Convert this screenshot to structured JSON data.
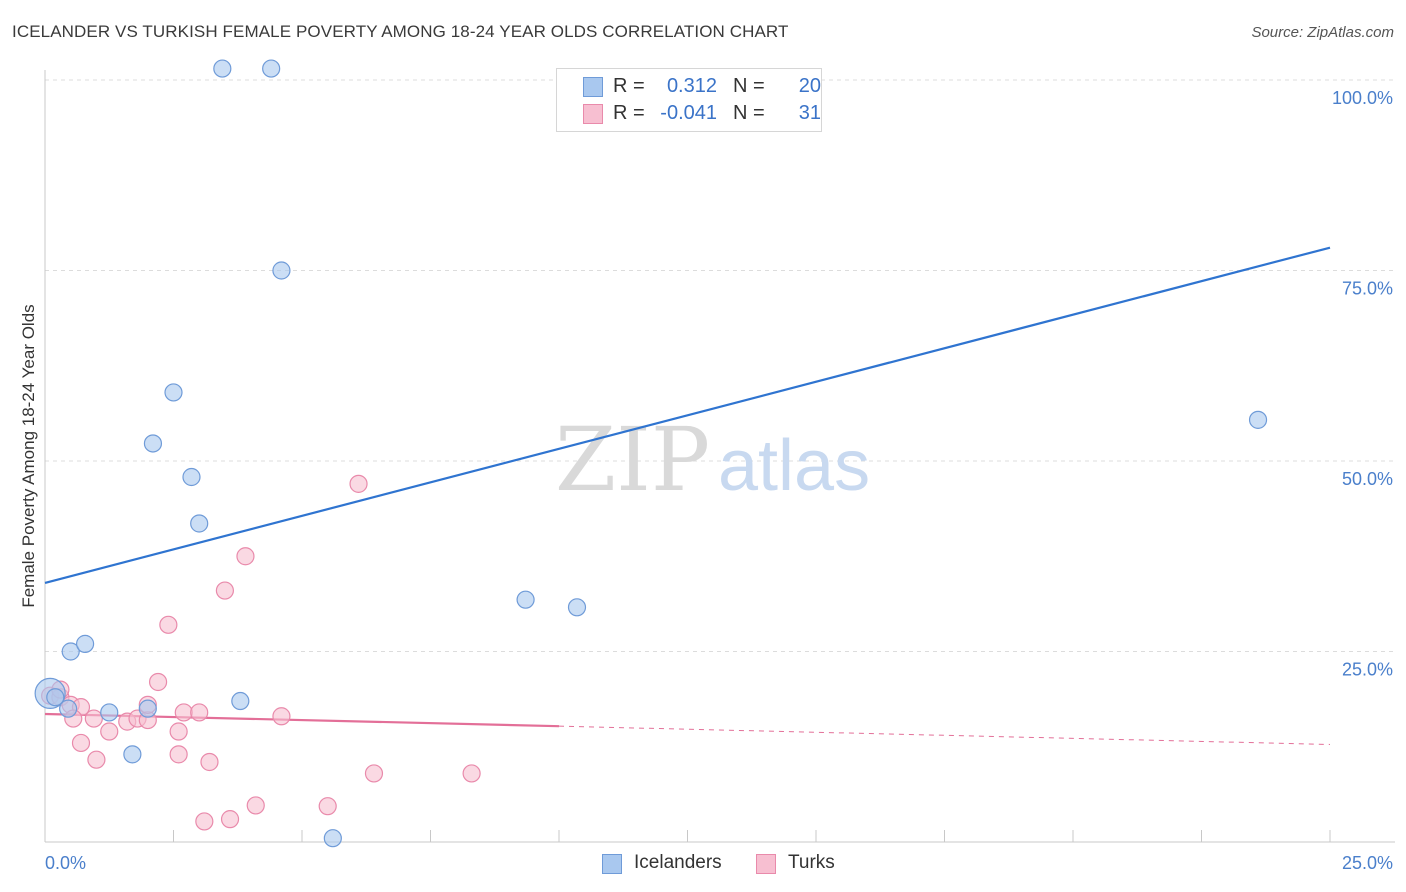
{
  "header": {
    "title": "ICELANDER VS TURKISH FEMALE POVERTY AMONG 18-24 YEAR OLDS CORRELATION CHART",
    "source": "Source: ZipAtlas.com"
  },
  "watermark": {
    "zip": "ZIP",
    "atlas": "atlas"
  },
  "legend": {
    "rows": [
      {
        "r_label": "R =",
        "r_value": "0.312",
        "n_label": "N =",
        "n_value": "20",
        "color": "#a9c8ef",
        "border": "#6f9bd8"
      },
      {
        "r_label": "R =",
        "r_value": "-0.041",
        "n_label": "N =",
        "n_value": "31",
        "color": "#f7bfd1",
        "border": "#e98aab"
      }
    ]
  },
  "bottom_legend": {
    "icelanders": "Icelanders",
    "turks": "Turks"
  },
  "colors": {
    "blue_fill": "#a9c8ef",
    "blue_stroke": "#6f9bd8",
    "blue_line": "#2f74d0",
    "pink_fill": "#f7bfd1",
    "pink_stroke": "#e98aab",
    "pink_line": "#e36f98",
    "axis_label": "#4a7fcb",
    "grid": "#dcdcdc"
  },
  "chart_data": {
    "type": "scatter",
    "title": "ICELANDER VS TURKISH FEMALE POVERTY AMONG 18-24 YEAR OLDS CORRELATION CHART",
    "xlabel": "",
    "ylabel": "Female Poverty Among 18-24 Year Olds",
    "xlim": [
      0,
      25
    ],
    "ylim": [
      0,
      100
    ],
    "x_tick_labels": [
      "0.0%",
      "25.0%"
    ],
    "y_tick_labels": [
      "25.0%",
      "50.0%",
      "75.0%",
      "100.0%"
    ],
    "y_ticks": [
      25,
      50,
      75,
      100
    ],
    "series": [
      {
        "name": "Icelanders",
        "r": 0.312,
        "n": 20,
        "points": [
          [
            0.1,
            19.5,
            "big"
          ],
          [
            0.2,
            19.0
          ],
          [
            0.45,
            17.5
          ],
          [
            1.25,
            17.0
          ],
          [
            0.5,
            25.0
          ],
          [
            0.78,
            26.0
          ],
          [
            2.0,
            17.5
          ],
          [
            1.7,
            11.5
          ],
          [
            2.5,
            59.0
          ],
          [
            2.1,
            52.3
          ],
          [
            2.85,
            47.9
          ],
          [
            3.0,
            41.8
          ],
          [
            3.45,
            101.5
          ],
          [
            4.4,
            101.5
          ],
          [
            4.6,
            75.0
          ],
          [
            3.8,
            18.5
          ],
          [
            5.6,
            0.5
          ],
          [
            9.35,
            31.8
          ],
          [
            10.35,
            30.8
          ],
          [
            23.6,
            55.4
          ]
        ],
        "trend": {
          "x0": 0,
          "y0": 34.0,
          "x1": 25,
          "y1": 78.0,
          "dashed_from": null
        }
      },
      {
        "name": "Turks",
        "r": -0.041,
        "n": 31,
        "points": [
          [
            0.1,
            19.2
          ],
          [
            0.3,
            19.0
          ],
          [
            0.5,
            18.0
          ],
          [
            0.7,
            17.7
          ],
          [
            0.55,
            16.2
          ],
          [
            0.95,
            16.2
          ],
          [
            0.7,
            13.0
          ],
          [
            1.25,
            14.5
          ],
          [
            1.0,
            10.8
          ],
          [
            1.6,
            15.8
          ],
          [
            1.8,
            16.2
          ],
          [
            2.0,
            16.0
          ],
          [
            2.0,
            18.0
          ],
          [
            2.2,
            21.0
          ],
          [
            2.7,
            17.0
          ],
          [
            3.0,
            17.0
          ],
          [
            2.6,
            14.5
          ],
          [
            2.6,
            11.5
          ],
          [
            3.2,
            10.5
          ],
          [
            3.5,
            33.0
          ],
          [
            3.9,
            37.5
          ],
          [
            2.4,
            28.5
          ],
          [
            3.1,
            2.7
          ],
          [
            3.6,
            3.0
          ],
          [
            4.1,
            4.8
          ],
          [
            4.6,
            16.5
          ],
          [
            5.5,
            4.7
          ],
          [
            6.1,
            47.0
          ],
          [
            6.4,
            9.0
          ],
          [
            8.3,
            9.0
          ],
          [
            0.3,
            20.0
          ]
        ],
        "trend": {
          "x0": 0,
          "y0": 16.8,
          "x1": 25,
          "y1": 12.8,
          "dashed_from": 10.0
        }
      }
    ]
  }
}
